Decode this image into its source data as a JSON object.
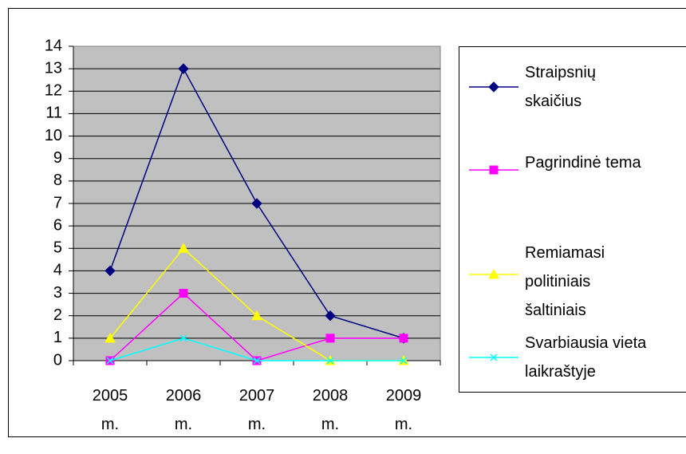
{
  "chart_data": {
    "type": "line",
    "categories": [
      "2005 m.",
      "2006 m.",
      "2007 m.",
      "2008 m.",
      "2009 m."
    ],
    "series": [
      {
        "name": "Straipsnių skaičius",
        "color": "#000080",
        "marker": "diamond",
        "values": [
          4,
          13,
          7,
          2,
          1
        ]
      },
      {
        "name": "Pagrindinė tema",
        "color": "#ff00ff",
        "marker": "square",
        "values": [
          0,
          3,
          0,
          1,
          1
        ]
      },
      {
        "name": "Remiamasi politiniais šaltiniais",
        "color": "#ffff00",
        "marker": "triangle",
        "values": [
          1,
          5,
          2,
          0,
          0
        ]
      },
      {
        "name": "Svarbiausia vieta laikraštyje",
        "color": "#00ffff",
        "marker": "x",
        "values": [
          0,
          1,
          0,
          0,
          0
        ]
      }
    ],
    "ylim": [
      0,
      14
    ],
    "yticks": [
      0,
      1,
      2,
      3,
      4,
      5,
      6,
      7,
      8,
      9,
      10,
      11,
      12,
      13,
      14
    ],
    "grid": true,
    "legend": "right"
  }
}
